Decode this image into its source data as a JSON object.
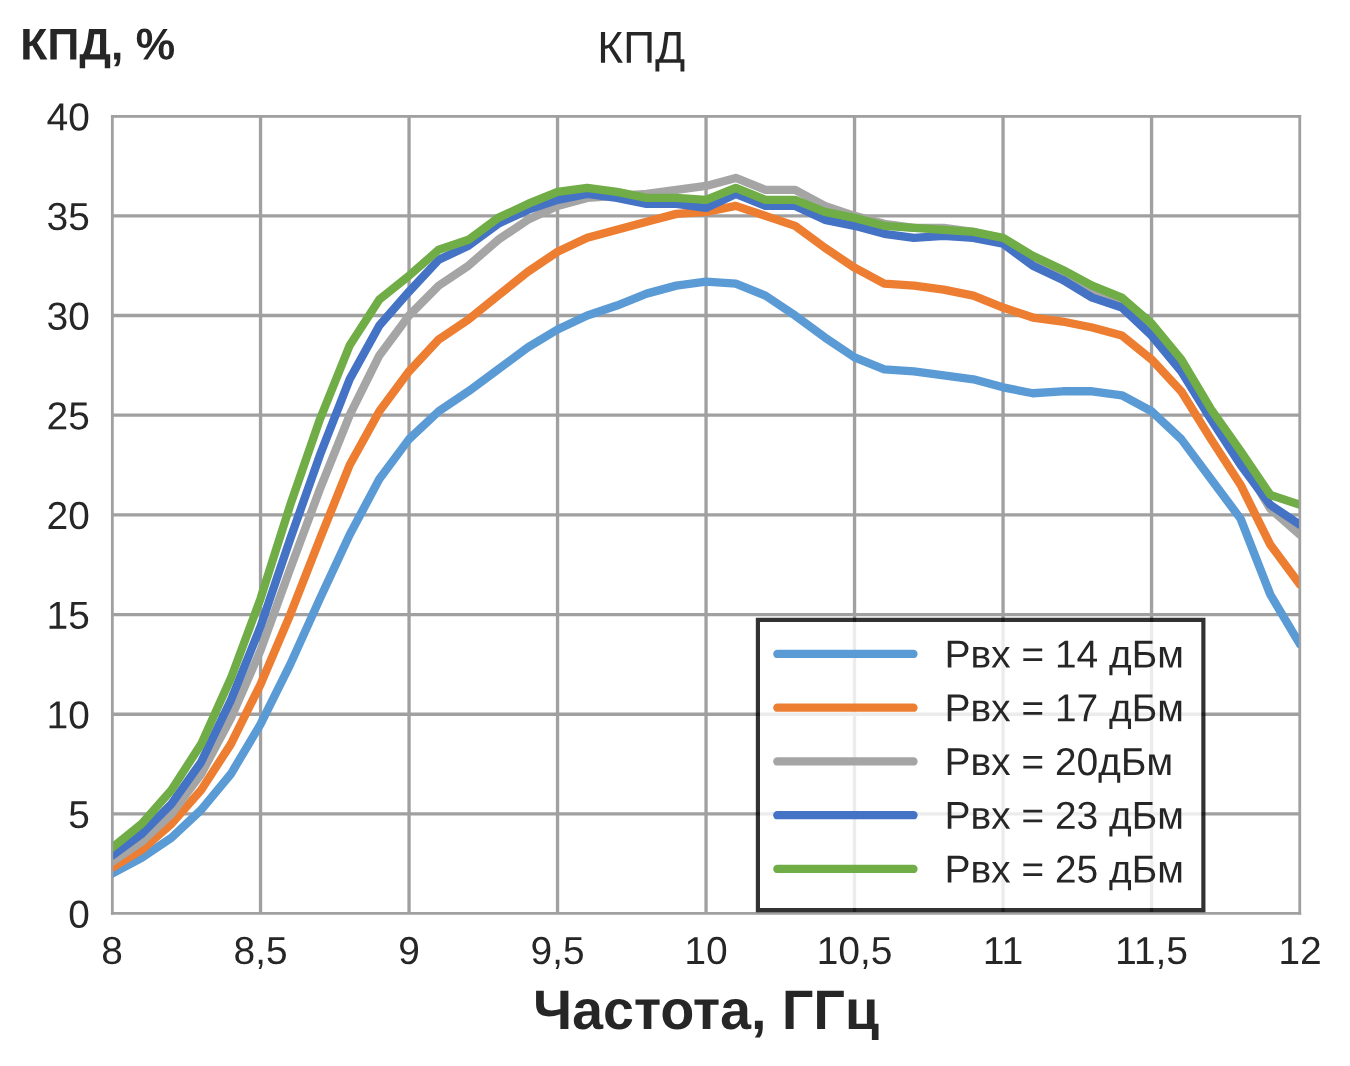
{
  "chart_data": {
    "type": "line",
    "title": "КПД",
    "xlabel": "Частота, ГГц",
    "ylabel": "КПД, %",
    "x": [
      8,
      8.1,
      8.2,
      8.3,
      8.4,
      8.5,
      8.6,
      8.7,
      8.8,
      8.9,
      9,
      9.1,
      9.2,
      9.3,
      9.4,
      9.5,
      9.6,
      9.7,
      9.8,
      9.9,
      10,
      10.1,
      10.2,
      10.3,
      10.4,
      10.5,
      10.6,
      10.7,
      10.8,
      10.9,
      11,
      11.1,
      11.2,
      11.3,
      11.4,
      11.5,
      11.6,
      11.7,
      11.8,
      11.9,
      12
    ],
    "series": [
      {
        "name": "Pвх = 14 дБм",
        "color": "#5b9bd5",
        "values": [
          2.0,
          2.8,
          3.8,
          5.2,
          7.0,
          9.5,
          12.5,
          15.8,
          19,
          21.8,
          23.8,
          25.2,
          26.2,
          27.3,
          28.4,
          29.3,
          30.0,
          30.5,
          31.1,
          31.5,
          31.7,
          31.6,
          31.0,
          30.0,
          28.9,
          27.9,
          27.3,
          27.2,
          27.0,
          26.8,
          26.4,
          26.1,
          26.2,
          26.2,
          26.0,
          25.2,
          23.8,
          21.8,
          19.8,
          16.0,
          13.5
        ]
      },
      {
        "name": "Pвх = 17 дБм",
        "color": "#ed7d31",
        "values": [
          2.3,
          3.2,
          4.5,
          6.2,
          8.5,
          11.5,
          15,
          18.8,
          22.5,
          25.2,
          27.2,
          28.8,
          29.8,
          31.0,
          32.2,
          33.2,
          33.9,
          34.3,
          34.7,
          35.1,
          35.2,
          35.5,
          35.0,
          34.5,
          33.4,
          32.4,
          31.6,
          31.5,
          31.3,
          31.0,
          30.4,
          29.9,
          29.7,
          29.4,
          29.0,
          27.8,
          26.2,
          23.8,
          21.5,
          18.5,
          16.5
        ]
      },
      {
        "name": "Pвх = 20дБм",
        "color": "#a5a5a5",
        "values": [
          2.6,
          3.6,
          5.0,
          7.0,
          9.8,
          13.2,
          17.3,
          21.3,
          25,
          28,
          30,
          31.5,
          32.5,
          33.8,
          34.8,
          35.5,
          35.9,
          36.0,
          36.1,
          36.3,
          36.5,
          36.9,
          36.3,
          36.3,
          35.5,
          35.0,
          34.6,
          34.4,
          34.4,
          34.2,
          33.8,
          32.8,
          32.0,
          31.2,
          30.5,
          29.2,
          27.5,
          25,
          22.8,
          20.3,
          19
        ]
      },
      {
        "name": "Pвх = 23 дБм",
        "color": "#4472c4",
        "values": [
          2.9,
          4.0,
          5.5,
          7.6,
          10.7,
          14.4,
          18.8,
          23,
          26.8,
          29.5,
          31.2,
          32.8,
          33.5,
          34.6,
          35.3,
          35.8,
          36.1,
          35.9,
          35.6,
          35.6,
          35.4,
          36.1,
          35.5,
          35.5,
          34.8,
          34.5,
          34.1,
          33.9,
          34.0,
          33.9,
          33.6,
          32.5,
          31.8,
          30.9,
          30.4,
          29.0,
          27.2,
          24.8,
          22.5,
          20.5,
          19.5
        ]
      },
      {
        "name": "Pвх = 25 дБм",
        "color": "#70ad47",
        "values": [
          3.3,
          4.5,
          6.2,
          8.5,
          11.8,
          15.8,
          20.5,
          24.8,
          28.5,
          30.8,
          32.0,
          33.3,
          33.8,
          34.9,
          35.6,
          36.2,
          36.4,
          36.2,
          35.9,
          35.9,
          35.8,
          36.4,
          35.8,
          35.8,
          35.2,
          34.9,
          34.5,
          34.4,
          34.3,
          34.2,
          33.9,
          33.0,
          32.3,
          31.5,
          30.9,
          29.6,
          27.8,
          25.3,
          23.2,
          21.0,
          20.5
        ]
      }
    ],
    "xlim": [
      8,
      12
    ],
    "ylim": [
      0,
      40
    ],
    "xticks": [
      8,
      {
        "value": 8.5,
        "label": "8,5"
      },
      9,
      {
        "value": 9.5,
        "label": "9,5"
      },
      10,
      {
        "value": 10.5,
        "label": "10,5"
      },
      11,
      {
        "value": 11.5,
        "label": "11,5"
      },
      12
    ],
    "yticks": [
      0,
      5,
      10,
      15,
      20,
      25,
      30,
      35,
      40
    ],
    "grid": true,
    "legend": "bottom right",
    "marker": "none",
    "line_style": "solid"
  }
}
